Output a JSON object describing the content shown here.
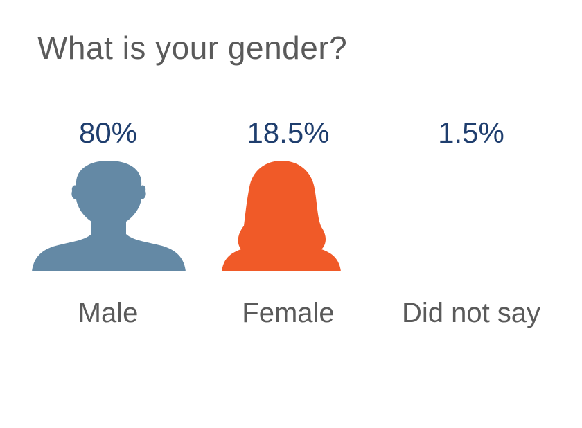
{
  "title": "What is your gender?",
  "chart_data": {
    "type": "pictograph",
    "title": "What is your gender?",
    "categories": [
      "Male",
      "Female",
      "Did not say"
    ],
    "values": [
      80,
      18.5,
      1.5
    ],
    "value_labels": [
      "80%",
      "18.5%",
      "1.5%"
    ],
    "unit": "%",
    "colors": {
      "Male": "#6489a5",
      "Female": "#f05a28",
      "Did not say": "none",
      "value_text": "#1f3e6e",
      "label_text": "#5a5a5a"
    },
    "icons": [
      "male-silhouette-icon",
      "female-silhouette-icon",
      ""
    ]
  }
}
